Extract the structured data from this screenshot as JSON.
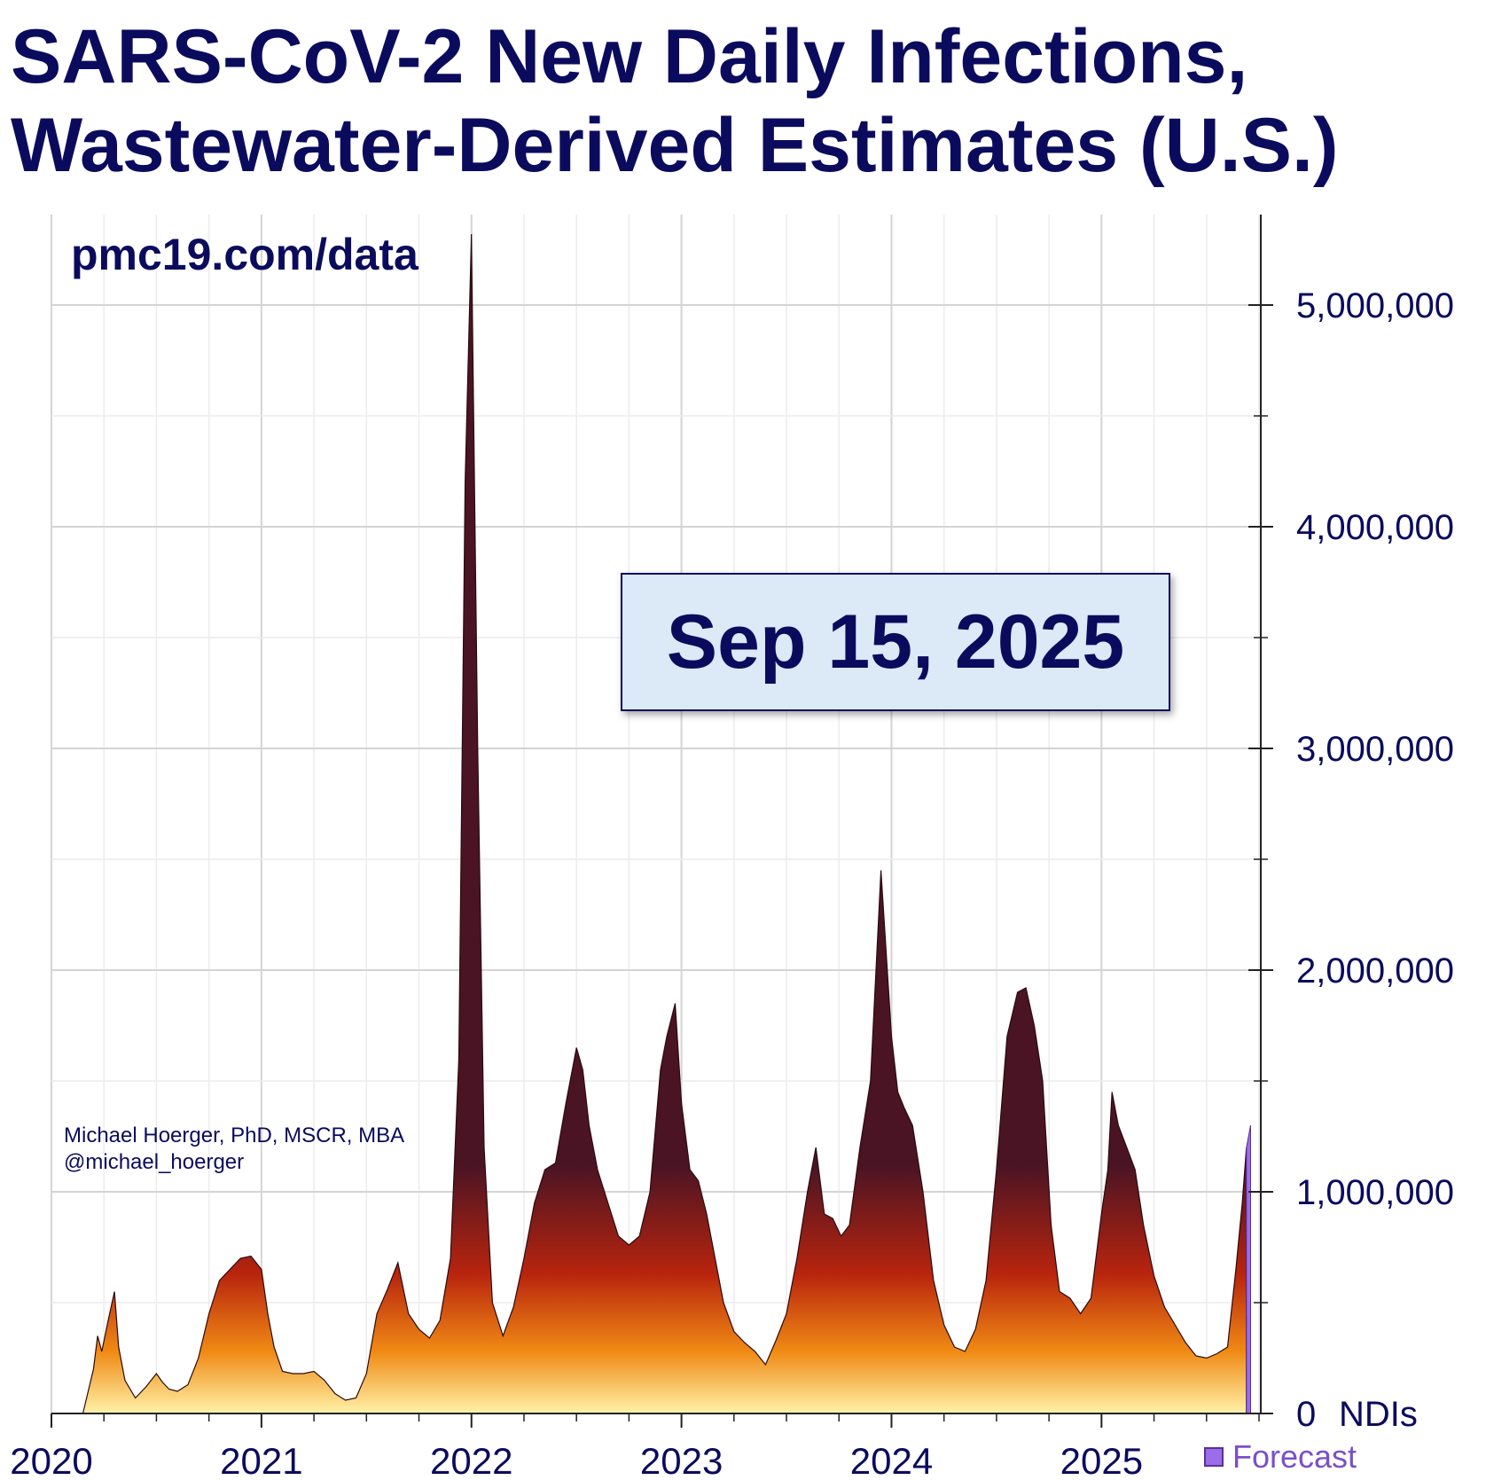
{
  "title_line1": "SARS-CoV-2 New Daily Infections,",
  "title_line2": "Wastewater-Derived Estimates (U.S.)",
  "source_url": "pmc19.com/data",
  "author_line1": "Michael Hoerger, PhD, MSCR, MBA",
  "author_line2": "@michael_hoerger",
  "date_label": "Sep 15, 2025",
  "legend_forecast": "Forecast",
  "colors": {
    "text": "#0b0b5e",
    "forecast": "#9b6de8",
    "fill_top": "#4a1424",
    "fill_mid": "#b8240e",
    "fill_low": "#f08a14",
    "fill_bottom": "#fff2a8"
  },
  "chart_data": {
    "type": "area",
    "title": "SARS-CoV-2 New Daily Infections, Wastewater-Derived Estimates (U.S.)",
    "xlabel": "",
    "ylabel": "",
    "y_unit_label": "NDIs",
    "xlim": [
      2020.0,
      2025.75
    ],
    "ylim": [
      0,
      5400000
    ],
    "x_ticks": [
      "2020",
      "2021",
      "2022",
      "2023",
      "2024",
      "2025"
    ],
    "y_ticks": [
      "0",
      "1,000,000",
      "2,000,000",
      "3,000,000",
      "4,000,000",
      "5,000,000"
    ],
    "y_tick_values": [
      0,
      1000000,
      2000000,
      3000000,
      4000000,
      5000000
    ],
    "grid": true,
    "series": [
      {
        "x": [
          2020.15,
          2020.2,
          2020.22,
          2020.24,
          2020.27,
          2020.3,
          2020.32,
          2020.35,
          2020.4,
          2020.45,
          2020.5,
          2020.53,
          2020.56,
          2020.6,
          2020.65,
          2020.7,
          2020.75,
          2020.8,
          2020.85,
          2020.9,
          2020.95,
          2021.0,
          2021.03,
          2021.06,
          2021.1,
          2021.15,
          2021.2,
          2021.25,
          2021.3,
          2021.35,
          2021.4,
          2021.45,
          2021.5,
          2021.55,
          2021.6,
          2021.65,
          2021.7,
          2021.75,
          2021.8,
          2021.85,
          2021.9,
          2021.94,
          2021.97,
          2022.0,
          2022.03,
          2022.06,
          2022.1,
          2022.15,
          2022.2,
          2022.25,
          2022.3,
          2022.35,
          2022.4,
          2022.45,
          2022.5,
          2022.53,
          2022.56,
          2022.6,
          2022.65,
          2022.7,
          2022.75,
          2022.8,
          2022.85,
          2022.9,
          2022.93,
          2022.97,
          2023.0,
          2023.04,
          2023.08,
          2023.12,
          2023.16,
          2023.2,
          2023.25,
          2023.3,
          2023.35,
          2023.4,
          2023.45,
          2023.5,
          2023.55,
          2023.6,
          2023.64,
          2023.68,
          2023.72,
          2023.76,
          2023.8,
          2023.85,
          2023.9,
          2023.95,
          2024.0,
          2024.03,
          2024.06,
          2024.1,
          2024.15,
          2024.2,
          2024.25,
          2024.3,
          2024.35,
          2024.4,
          2024.45,
          2024.5,
          2024.55,
          2024.6,
          2024.64,
          2024.68,
          2024.72,
          2024.76,
          2024.8,
          2024.85,
          2024.9,
          2024.95,
          2025.0,
          2025.03,
          2025.05,
          2025.08,
          2025.12,
          2025.16,
          2025.2,
          2025.25,
          2025.3,
          2025.35,
          2025.4,
          2025.45,
          2025.5,
          2025.55,
          2025.6,
          2025.64,
          2025.67,
          2025.69
        ],
        "y": [
          0,
          200000,
          350000,
          280000,
          420000,
          550000,
          300000,
          150000,
          70000,
          120000,
          180000,
          140000,
          110000,
          100000,
          130000,
          250000,
          450000,
          600000,
          650000,
          700000,
          710000,
          650000,
          450000,
          300000,
          190000,
          180000,
          180000,
          190000,
          150000,
          90000,
          60000,
          70000,
          180000,
          450000,
          560000,
          680000,
          450000,
          380000,
          340000,
          420000,
          700000,
          1600000,
          4200000,
          5320000,
          3000000,
          1200000,
          500000,
          350000,
          480000,
          700000,
          950000,
          1100000,
          1130000,
          1400000,
          1650000,
          1550000,
          1300000,
          1100000,
          950000,
          800000,
          760000,
          800000,
          1000000,
          1550000,
          1700000,
          1850000,
          1400000,
          1100000,
          1050000,
          900000,
          700000,
          500000,
          370000,
          320000,
          280000,
          220000,
          330000,
          450000,
          700000,
          1000000,
          1200000,
          900000,
          880000,
          800000,
          850000,
          1200000,
          1500000,
          2450000,
          1700000,
          1450000,
          1380000,
          1300000,
          1000000,
          600000,
          400000,
          300000,
          280000,
          380000,
          600000,
          1100000,
          1700000,
          1900000,
          1920000,
          1750000,
          1500000,
          850000,
          550000,
          520000,
          450000,
          520000,
          900000,
          1100000,
          1450000,
          1300000,
          1200000,
          1100000,
          850000,
          620000,
          480000,
          400000,
          320000,
          260000,
          250000,
          270000,
          300000,
          650000,
          950000,
          1200000
        ]
      }
    ],
    "forecast": {
      "x": [
        2025.69,
        2025.71
      ],
      "y": [
        1200000,
        1300000
      ]
    }
  }
}
